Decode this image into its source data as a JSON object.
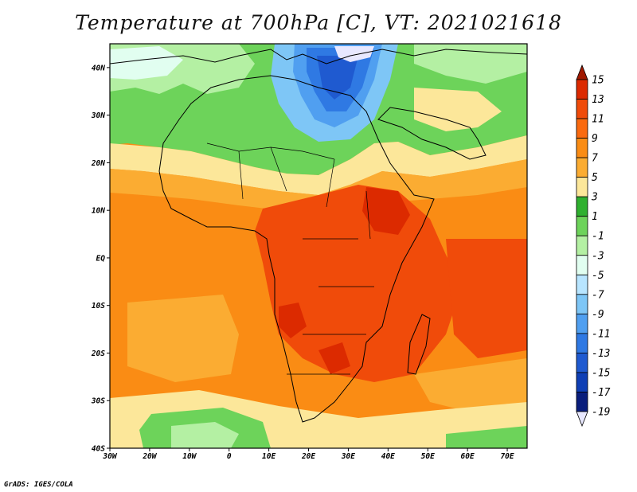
{
  "title": "Temperature at 700hPa [C], VT: 2021021618",
  "credit": "GrADS: IGES/COLA",
  "map": {
    "lon_range": [
      -30,
      75
    ],
    "lat_range": [
      -40,
      45
    ],
    "lon_ticks": [
      {
        "value": -30,
        "label": "30W"
      },
      {
        "value": -20,
        "label": "20W"
      },
      {
        "value": -10,
        "label": "10W"
      },
      {
        "value": 0,
        "label": "0"
      },
      {
        "value": 10,
        "label": "10E"
      },
      {
        "value": 20,
        "label": "20E"
      },
      {
        "value": 30,
        "label": "30E"
      },
      {
        "value": 40,
        "label": "40E"
      },
      {
        "value": 50,
        "label": "50E"
      },
      {
        "value": 60,
        "label": "60E"
      },
      {
        "value": 70,
        "label": "70E"
      }
    ],
    "lat_ticks": [
      {
        "value": 40,
        "label": "40N"
      },
      {
        "value": 30,
        "label": "30N"
      },
      {
        "value": 20,
        "label": "20N"
      },
      {
        "value": 10,
        "label": "10N"
      },
      {
        "value": 0,
        "label": "EQ"
      },
      {
        "value": -10,
        "label": "10S"
      },
      {
        "value": -20,
        "label": "20S"
      },
      {
        "value": -30,
        "label": "30S"
      },
      {
        "value": -40,
        "label": "40S"
      }
    ]
  },
  "colorbar": {
    "levels": [
      15,
      13,
      11,
      9,
      7,
      5,
      3,
      1,
      -1,
      -3,
      -5,
      -7,
      -9,
      -11,
      -13,
      -15,
      -17,
      -19
    ],
    "labels": [
      "15",
      "13",
      "11",
      "9",
      "7",
      "5",
      "3",
      "1",
      "-1",
      "-3",
      "-5",
      "-7",
      "-9",
      "-11",
      "-13",
      "-15",
      "-17",
      "-19"
    ],
    "colors": [
      "#a01800",
      "#dc2a00",
      "#f04b0a",
      "#fa6a0f",
      "#fa8c14",
      "#fbac32",
      "#fce79a",
      "#2fb02f",
      "#6dd35a",
      "#b4f0a3",
      "#e1fef0",
      "#b8e5ff",
      "#7ec6f6",
      "#509ff0",
      "#2f79e3",
      "#1f5ad0",
      "#0f3fb5",
      "#0a1e7c",
      "#e8e8ff"
    ]
  }
}
